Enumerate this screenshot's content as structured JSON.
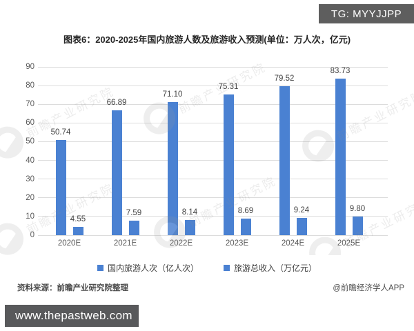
{
  "badge": {
    "label": "TG: MYYJJPP"
  },
  "chart_data": {
    "type": "bar",
    "title": "图表6：2020-2025年国内旅游人数及旅游收入预测(单位：万人次，亿元)",
    "categories": [
      "2020E",
      "2021E",
      "2022E",
      "2023E",
      "2024E",
      "2025E"
    ],
    "series": [
      {
        "name": "国内旅游人次（亿人次）",
        "values": [
          50.74,
          66.89,
          71.1,
          75.31,
          79.52,
          83.73
        ]
      },
      {
        "name": "旅游总收入（万亿元）",
        "values": [
          4.55,
          7.59,
          8.14,
          8.69,
          9.24,
          9.8
        ]
      }
    ],
    "xlabel": "",
    "ylabel": "",
    "ylim": [
      0,
      90
    ],
    "ytick_step": 10,
    "grid": true,
    "legend_position": "bottom",
    "value_labels_decimals": 2
  },
  "watermark": {
    "logo": "forward-globe-icon",
    "text": "前瞻产业研究院"
  },
  "footer": {
    "source_note": "资料来源：前瞻产业研究院整理",
    "credit": "@前瞻经济学人APP",
    "site_banner": "www.thepastweb.com"
  },
  "colors": {
    "bar": "#4a81d2",
    "grid": "#dcdcdc",
    "badge_bg": "#5e5e5e",
    "banner_bg": "#58595b"
  }
}
